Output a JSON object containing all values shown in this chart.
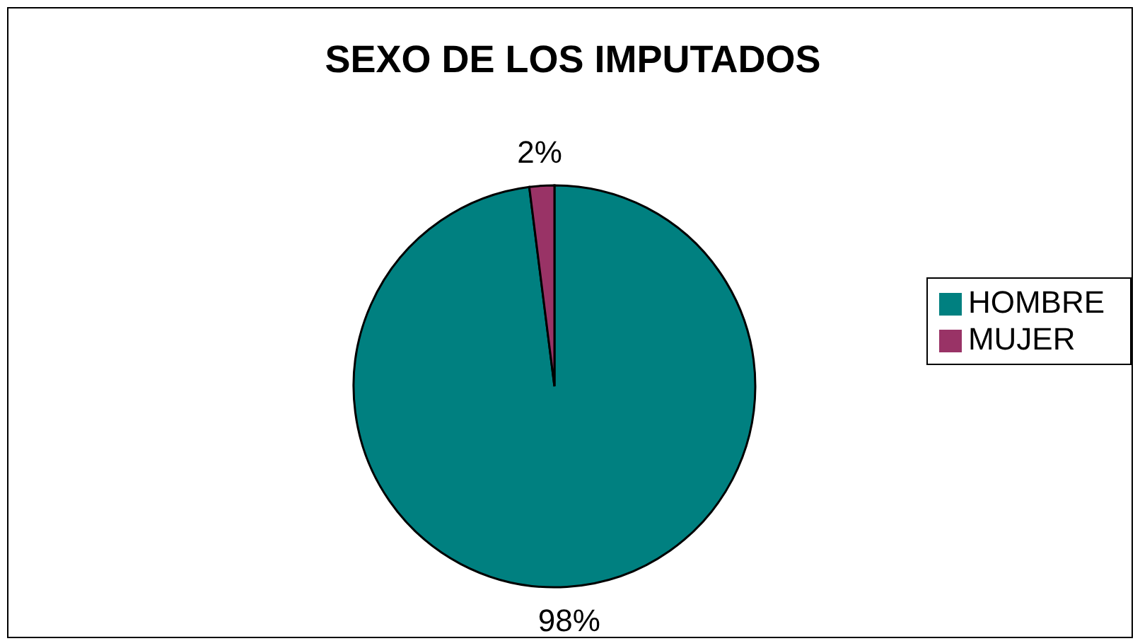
{
  "chart_data": {
    "type": "pie",
    "title": "SEXO DE LOS IMPUTADOS",
    "categories": [
      "HOMBRE",
      "MUJER"
    ],
    "values": [
      98,
      2
    ],
    "colors": [
      "#008080",
      "#993366"
    ],
    "value_labels": [
      "98%",
      "2%"
    ],
    "legend": "right"
  }
}
